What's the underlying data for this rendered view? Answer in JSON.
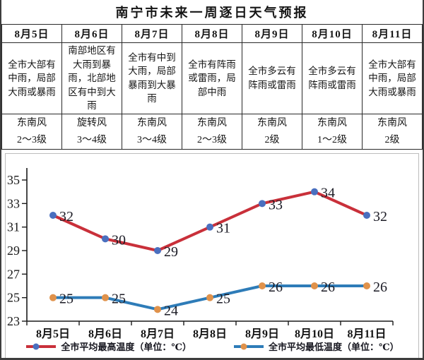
{
  "title": "南宁市未来一周逐日天气预报",
  "table": {
    "days": [
      {
        "date": "8月5日",
        "weather": "全市大部有中雨，局部大雨或暴雨",
        "wind": "东南风\n2～3级"
      },
      {
        "date": "8月6日",
        "weather": "南部地区有大雨到暴雨，北部地区有中到大雨",
        "wind": "旋转风\n3～4级"
      },
      {
        "date": "8月7日",
        "weather": "全市有中到大雨，局部暴雨到大暴雨",
        "wind": "东南风\n3～4级"
      },
      {
        "date": "8月8日",
        "weather": "全市有阵雨或雷雨，局部中雨",
        "wind": "东南风\n2～3级"
      },
      {
        "date": "8月9日",
        "weather": "全市多云有阵雨或雷雨",
        "wind": "东南风\n2级"
      },
      {
        "date": "8月10日",
        "weather": "全市多云有阵雨或雷雨",
        "wind": "东南风\n1～2级"
      },
      {
        "date": "8月11日",
        "weather": "全市大部有中雨，局部大雨或暴雨",
        "wind": "东南风\n2级"
      }
    ]
  },
  "chart_data": {
    "type": "line",
    "title": "",
    "categories": [
      "8月5日",
      "8月6日",
      "8月7日",
      "8月8日",
      "8月9日",
      "8月10日",
      "8月11日"
    ],
    "series": [
      {
        "name": "全市平均最高温度（单位：℃）",
        "values": [
          32,
          30,
          29,
          31,
          33,
          34,
          32
        ],
        "line_color": "#c9303a",
        "marker_color": "#4a6fbf"
      },
      {
        "name": "全市平均最低温度（单位：℃）",
        "values": [
          25,
          25,
          24,
          25,
          26,
          26,
          26
        ],
        "line_color": "#2e7cb8",
        "marker_color": "#e0924b"
      }
    ],
    "xlabel": "",
    "ylabel": "",
    "ylim": [
      23,
      35
    ],
    "ytick_step": 2,
    "yticks": [
      23,
      25,
      27,
      29,
      31,
      33,
      35
    ],
    "grid": false,
    "legend_position": "bottom",
    "data_labels": true,
    "axis_color": "#1a1a1a",
    "label_color": "#1c1c26"
  }
}
